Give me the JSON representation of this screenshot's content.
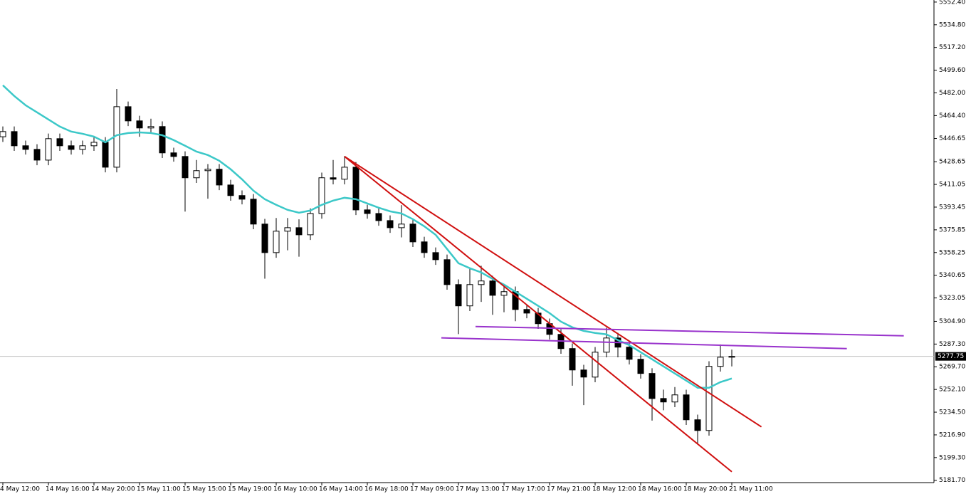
{
  "chart_data": {
    "type": "candlestick",
    "categories": [
      "4 May 12:00",
      null,
      null,
      null,
      "14 May 16:00",
      null,
      null,
      null,
      "14 May 20:00",
      null,
      null,
      null,
      "15 May 11:00",
      null,
      null,
      null,
      "15 May 15:00",
      null,
      null,
      null,
      "15 May 19:00",
      null,
      null,
      null,
      "16 May 10:00",
      null,
      null,
      null,
      "16 May 14:00",
      null,
      null,
      null,
      "16 May 18:00",
      null,
      null,
      null,
      "17 May 09:00",
      null,
      null,
      null,
      "17 May 13:00",
      null,
      null,
      null,
      "17 May 17:00",
      null,
      null,
      null,
      "17 May 21:00",
      null,
      null,
      null,
      "18 May 12:00",
      null,
      null,
      null,
      "18 May 16:00",
      null,
      null,
      null,
      "18 May 20:00",
      null,
      null,
      null,
      "21 May 11:00"
    ],
    "open": [
      5448.0,
      5452.0,
      5441.0,
      5438.2,
      5429.9,
      5446.5,
      5441.0,
      5438.2,
      5441.0,
      5443.7,
      5424.4,
      5471.3,
      5460.3,
      5454.8,
      5455.9,
      5435.5,
      5432.7,
      5416.2,
      5421.7,
      5422.8,
      5410.6,
      5402.4,
      5399.6,
      5380.3,
      5358.2,
      5374.8,
      5377.5,
      5372.0,
      5388.5,
      5416.2,
      5415.1,
      5424.4,
      5391.3,
      5388.5,
      5383.0,
      5377.5,
      5380.3,
      5366.5,
      5358.2,
      5352.7,
      5333.4,
      5316.9,
      5333.4,
      5336.2,
      5325.1,
      5327.9,
      5314.1,
      5311.3,
      5303.1,
      5294.8,
      5283.8,
      5267.2,
      5261.7,
      5281.0,
      5292.0,
      5284.9,
      5275.5,
      5264.5,
      5245.1,
      5242.4,
      5247.9,
      5228.6,
      5220.3,
      5270.0,
      5277.1
    ],
    "high": [
      5456.0,
      5456.0,
      5445.0,
      5442.2,
      5450.5,
      5450.5,
      5445.0,
      5445.0,
      5447.7,
      5447.7,
      5485.0,
      5475.3,
      5464.3,
      5462.0,
      5459.9,
      5439.5,
      5436.7,
      5430.0,
      5426.8,
      5426.8,
      5414.6,
      5406.4,
      5403.6,
      5384.3,
      5385.0,
      5385.0,
      5384.0,
      5392.5,
      5420.2,
      5430.0,
      5433.0,
      5428.4,
      5395.3,
      5392.5,
      5387.0,
      5395.0,
      5384.3,
      5370.5,
      5362.2,
      5356.7,
      5337.4,
      5346.0,
      5348.0,
      5340.2,
      5331.9,
      5331.9,
      5318.1,
      5315.3,
      5307.1,
      5298.8,
      5287.8,
      5271.2,
      5285.0,
      5300.0,
      5296.0,
      5288.9,
      5279.5,
      5268.5,
      5252.0,
      5254.0,
      5251.9,
      5232.6,
      5274.0,
      5287.0,
      5283.0
    ],
    "low": [
      5444.0,
      5437.0,
      5434.2,
      5425.9,
      5425.9,
      5437.0,
      5434.2,
      5434.2,
      5437.0,
      5420.4,
      5420.4,
      5456.3,
      5448.0,
      5450.8,
      5431.5,
      5428.7,
      5390.0,
      5412.2,
      5400.0,
      5406.6,
      5398.4,
      5395.6,
      5376.3,
      5338.0,
      5354.2,
      5360.0,
      5355.0,
      5368.0,
      5384.5,
      5411.1,
      5411.1,
      5387.3,
      5384.5,
      5379.0,
      5373.5,
      5370.0,
      5362.5,
      5354.2,
      5348.7,
      5329.4,
      5295.0,
      5312.9,
      5320.0,
      5310.0,
      5312.0,
      5305.0,
      5307.3,
      5299.1,
      5290.8,
      5279.8,
      5255.0,
      5240.0,
      5257.7,
      5277.0,
      5277.0,
      5271.5,
      5260.5,
      5228.0,
      5236.0,
      5238.4,
      5224.6,
      5210.0,
      5216.3,
      5266.0,
      5270.0
    ],
    "close": [
      5452.0,
      5441.0,
      5438.2,
      5429.9,
      5446.5,
      5441.0,
      5438.2,
      5441.0,
      5443.7,
      5424.4,
      5471.3,
      5460.3,
      5454.8,
      5455.9,
      5435.5,
      5432.7,
      5416.2,
      5421.7,
      5422.8,
      5410.6,
      5402.4,
      5399.6,
      5380.3,
      5358.2,
      5374.8,
      5377.5,
      5372.0,
      5388.5,
      5416.2,
      5415.1,
      5424.4,
      5391.3,
      5388.5,
      5383.0,
      5377.5,
      5380.3,
      5366.5,
      5358.2,
      5352.7,
      5333.4,
      5316.9,
      5333.4,
      5336.2,
      5325.1,
      5327.9,
      5314.1,
      5311.3,
      5303.1,
      5294.8,
      5283.8,
      5267.2,
      5261.7,
      5281.0,
      5292.0,
      5284.9,
      5275.5,
      5264.5,
      5245.1,
      5242.4,
      5247.9,
      5228.6,
      5220.3,
      5270.0,
      5277.1,
      5277.75
    ],
    "up_color": "#ffffff",
    "down_color": "#000000",
    "outline_color": "#000000",
    "ma": {
      "color": "#3cc8c8",
      "values": [
        5487.9,
        5479.6,
        5472.4,
        5466.9,
        5461.4,
        5455.9,
        5452.0,
        5450.3,
        5448.1,
        5443.7,
        5449.2,
        5450.9,
        5451.4,
        5450.9,
        5449.2,
        5445.4,
        5441.0,
        5436.5,
        5433.8,
        5429.4,
        5422.8,
        5415.0,
        5406.2,
        5399.6,
        5395.2,
        5391.3,
        5389.1,
        5390.8,
        5395.2,
        5398.5,
        5400.7,
        5399.6,
        5396.3,
        5393.0,
        5390.2,
        5388.5,
        5384.1,
        5378.6,
        5372.0,
        5361.0,
        5350.0,
        5346.1,
        5342.8,
        5337.8,
        5333.4,
        5327.9,
        5322.4,
        5316.9,
        5311.3,
        5304.7,
        5300.3,
        5297.5,
        5295.9,
        5294.8,
        5290.4,
        5286.5,
        5281.0,
        5275.5,
        5270.0,
        5264.5,
        5259.0,
        5253.4,
        5253.4,
        5257.8,
        5260.6
      ]
    },
    "trendlines": [
      {
        "color": "#d01010",
        "x": [
          30,
          66.6
        ],
        "y": [
          5432.7,
          5223.1
        ]
      },
      {
        "color": "#d01010",
        "x": [
          30,
          64
        ],
        "y": [
          5432.7,
          5188.3
        ]
      },
      {
        "color": "#9933cc",
        "x": [
          41.5,
          79.1
        ],
        "y": [
          5300.9,
          5293.7
        ]
      },
      {
        "color": "#9933cc",
        "x": [
          38.5,
          74.1
        ],
        "y": [
          5292.1,
          5283.8
        ]
      }
    ],
    "current_price": 5277.75,
    "ylim": [
      5181,
      5554
    ],
    "yticks": [
      {
        "value": 5552.4,
        "label": "5552.40"
      },
      {
        "value": 5534.8,
        "label": "5534.80"
      },
      {
        "value": 5517.2,
        "label": "5517.20"
      },
      {
        "value": 5499.6,
        "label": "5499.60"
      },
      {
        "value": 5482,
        "label": "5482.00"
      },
      {
        "value": 5464.4,
        "label": "5464.40"
      },
      5446.65,
      5428.65,
      5411.05,
      5393.45,
      5375.85,
      5358.25,
      5340.65,
      5323.05,
      {
        "value": 5304.9,
        "label": "5304.90"
      },
      {
        "value": 5287.3,
        "label": "5287.30"
      },
      {
        "value": 5269.7,
        "label": "5269.70"
      },
      {
        "value": 5252.1,
        "label": "5252.10"
      },
      {
        "value": 5234.5,
        "label": "5234.50"
      },
      {
        "value": 5216.9,
        "label": "5216.90"
      },
      {
        "value": 5199.3,
        "label": "5199.30"
      },
      {
        "value": 5181.7,
        "label": "5181.70"
      }
    ]
  }
}
